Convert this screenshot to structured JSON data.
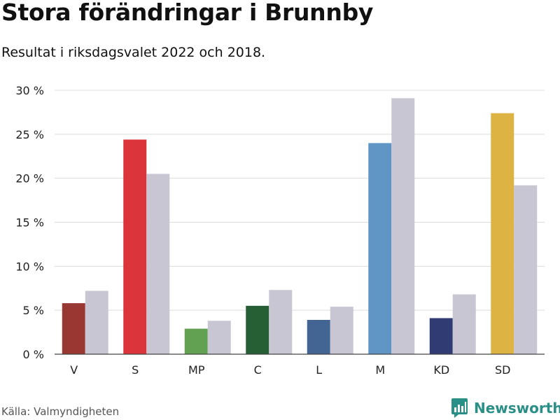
{
  "header": {
    "title": "Stora förändringar i Brunnby",
    "subtitle": "Resultat i riksdagsvalet 2022 och 2018."
  },
  "footer": {
    "source": "Källa: Valmyndigheten",
    "brand": "Newsworthy",
    "brand_color": "#2a8f86"
  },
  "chart_data": {
    "type": "bar",
    "categories": [
      "V",
      "S",
      "MP",
      "C",
      "L",
      "M",
      "KD",
      "SD"
    ],
    "series": [
      {
        "values": [
          5.8,
          24.4,
          2.9,
          5.5,
          3.9,
          24.0,
          4.1,
          27.4
        ],
        "colors": [
          "#993833",
          "#dc343b",
          "#62a052",
          "#255f33",
          "#436593",
          "#6096c6",
          "#303a73",
          "#ddb344"
        ]
      },
      {
        "values": [
          7.2,
          20.5,
          3.8,
          7.3,
          5.4,
          29.1,
          6.8,
          19.2
        ],
        "color": "#c8c6d3"
      }
    ],
    "ylim": [
      0,
      30
    ],
    "yticks": [
      0,
      5,
      10,
      15,
      20,
      25,
      30
    ],
    "ytick_labels": [
      "0 %",
      "5 %",
      "10 %",
      "15 %",
      "20 %",
      "25 %",
      "30 %"
    ],
    "grid": true,
    "legend": "none"
  }
}
